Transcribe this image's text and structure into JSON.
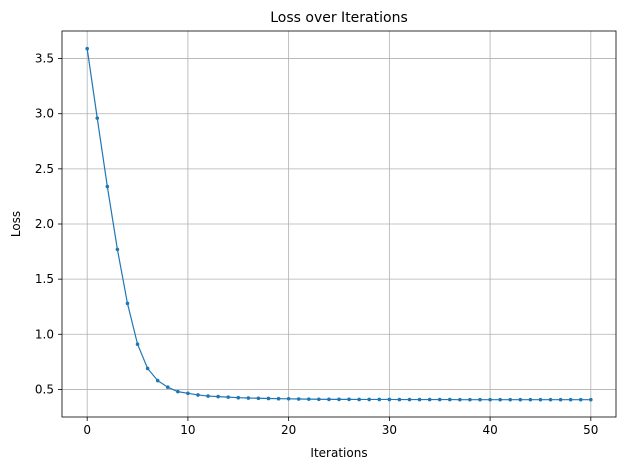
{
  "chart_data": {
    "type": "line",
    "title": "Loss over Iterations",
    "xlabel": "Iterations",
    "ylabel": "Loss",
    "xlim": [
      -2.5,
      52.5
    ],
    "ylim": [
      0.25,
      3.75
    ],
    "xticks": [
      0,
      10,
      20,
      30,
      40,
      50
    ],
    "xtick_labels": [
      "0",
      "10",
      "20",
      "30",
      "40",
      "50"
    ],
    "yticks": [
      0.5,
      1.0,
      1.5,
      2.0,
      2.5,
      3.0,
      3.5
    ],
    "ytick_labels": [
      "0.5",
      "1.0",
      "1.5",
      "2.0",
      "2.5",
      "3.0",
      "3.5"
    ],
    "grid": true,
    "legend": "none",
    "series": [
      {
        "color": "#1f77b4",
        "marker": "circle",
        "x": [
          0,
          1,
          2,
          3,
          4,
          5,
          6,
          7,
          8,
          9,
          10,
          11,
          12,
          13,
          14,
          15,
          16,
          17,
          18,
          19,
          20,
          21,
          22,
          23,
          24,
          25,
          26,
          27,
          28,
          29,
          30,
          31,
          32,
          33,
          34,
          35,
          36,
          37,
          38,
          39,
          40,
          41,
          42,
          43,
          44,
          45,
          46,
          47,
          48,
          49,
          50
        ],
        "values": [
          3.59,
          2.96,
          2.34,
          1.77,
          1.28,
          0.91,
          0.69,
          0.58,
          0.52,
          0.48,
          0.465,
          0.45,
          0.44,
          0.435,
          0.43,
          0.425,
          0.422,
          0.42,
          0.418,
          0.416,
          0.415,
          0.413,
          0.412,
          0.411,
          0.41,
          0.41,
          0.41,
          0.409,
          0.409,
          0.409,
          0.409,
          0.408,
          0.408,
          0.408,
          0.408,
          0.408,
          0.408,
          0.407,
          0.407,
          0.407,
          0.407,
          0.407,
          0.407,
          0.407,
          0.407,
          0.407,
          0.407,
          0.407,
          0.407,
          0.407,
          0.407
        ]
      }
    ]
  }
}
